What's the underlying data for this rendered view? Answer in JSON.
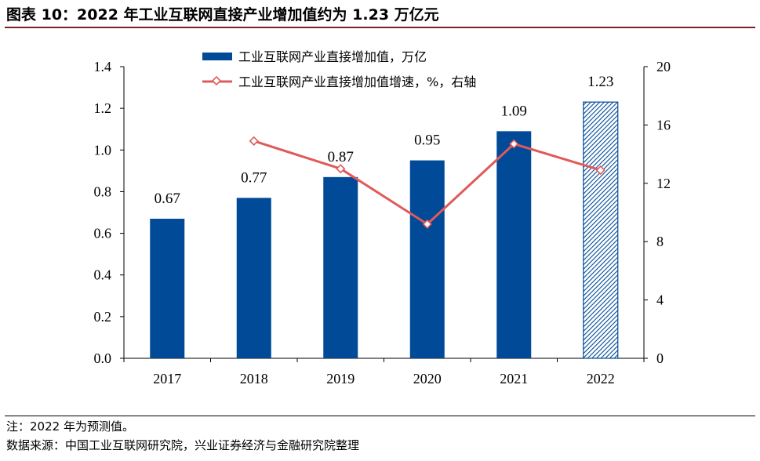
{
  "header": {
    "title": "图表 10：2022 年工业互联网直接产业增加值约为 1.23 万亿元"
  },
  "footer": {
    "note": "注：2022 年为预测值。",
    "source": "数据来源：中国工业互联网研究院，兴业证券经济与金融研究院整理"
  },
  "colors": {
    "bar": "#004a97",
    "line": "#e05a5a",
    "title_rule": "#7a1f2b"
  },
  "chart_data": {
    "type": "bar",
    "categories": [
      "2017",
      "2018",
      "2019",
      "2020",
      "2021",
      "2022"
    ],
    "series": [
      {
        "name": "工业互联网产业直接增加值，万亿",
        "type": "bar",
        "axis": "left",
        "values": [
          0.67,
          0.77,
          0.87,
          0.95,
          1.09,
          1.23
        ],
        "labels": [
          "0.67",
          "0.77",
          "0.87",
          "0.95",
          "1.09",
          "1.23"
        ],
        "forecast_index": 5
      },
      {
        "name": "工业互联网产业直接增加值增速，%，右轴",
        "type": "line",
        "axis": "right",
        "x": [
          "2018",
          "2019",
          "2020",
          "2021",
          "2022"
        ],
        "values": [
          14.9,
          13.0,
          9.2,
          14.7,
          12.9
        ]
      }
    ],
    "y_left": {
      "lim": [
        0,
        1.4
      ],
      "ticks": [
        "0.0",
        "0.2",
        "0.4",
        "0.6",
        "0.8",
        "1.0",
        "1.2",
        "1.4"
      ]
    },
    "y_right": {
      "lim": [
        0,
        20
      ],
      "ticks": [
        "0",
        "4",
        "8",
        "12",
        "16",
        "20"
      ]
    },
    "legend_position": "top-center",
    "grid": false
  }
}
